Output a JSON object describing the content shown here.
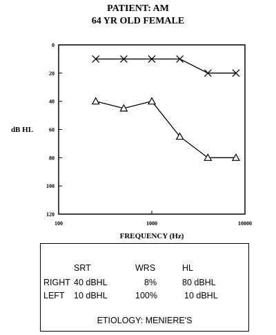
{
  "title": {
    "line1": "PATIENT:  AM",
    "line2": "64 YR OLD FEMALE"
  },
  "chart_data": {
    "type": "line",
    "xlabel": "FREQUENCY (Hz)",
    "ylabel": "dB HL",
    "xscale": "log",
    "xlim": [
      100,
      10000
    ],
    "ylim": [
      0,
      120
    ],
    "y_inverted": true,
    "grid": false,
    "x_ticks": [
      "100",
      "1000",
      "10000"
    ],
    "y_ticks": [
      "0",
      "20",
      "40",
      "60",
      "80",
      "100",
      "120"
    ],
    "series": [
      {
        "marker": "x",
        "x": [
          250,
          500,
          1000,
          2000,
          4000,
          8000
        ],
        "y": [
          10,
          10,
          10,
          10,
          20,
          20
        ]
      },
      {
        "marker": "triangle",
        "x": [
          250,
          500,
          1000,
          2000,
          4000,
          8000
        ],
        "y": [
          40,
          45,
          40,
          65,
          80,
          80
        ]
      }
    ]
  },
  "table": {
    "headers": [
      "SRT",
      "WRS",
      "HL"
    ],
    "rows": [
      {
        "label": "RIGHT",
        "srt": "40 dBHL",
        "wrs": "8%",
        "hl": "80 dBHL"
      },
      {
        "label": "LEFT",
        "srt": "10 dBHL",
        "wrs": "100%",
        "hl": "10 dBHL"
      }
    ],
    "etiology": "ETIOLOGY: MENIERE'S"
  }
}
